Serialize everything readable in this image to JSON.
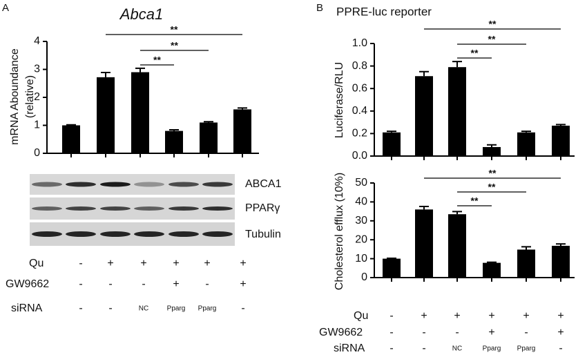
{
  "panel_labels": [
    "A",
    "B"
  ],
  "chart_data": [
    {
      "type": "bar",
      "title": "Abca1",
      "ylabel": [
        "mRNA Aboundance",
        "(relative)"
      ],
      "categories": [
        null,
        null,
        null,
        null,
        null,
        null
      ],
      "values": [
        1.0,
        2.72,
        2.9,
        0.8,
        1.1,
        1.57
      ],
      "errors": [
        0.02,
        0.17,
        0.14,
        0.04,
        0.03,
        0.05
      ],
      "color": "#000000",
      "ylim": [
        0,
        4
      ],
      "yticks": [
        0,
        1,
        2,
        3,
        4
      ],
      "annotations": [
        "**",
        "**",
        "**"
      ]
    },
    {
      "type": "bar",
      "title": "PPRE-luc reporter",
      "ylabel": [
        "Luciferase/RLU"
      ],
      "categories": [
        null,
        null,
        null,
        null,
        null,
        null
      ],
      "values": [
        0.21,
        0.71,
        0.79,
        0.08,
        0.21,
        0.27
      ],
      "errors": [
        0.01,
        0.04,
        0.05,
        0.02,
        0.01,
        0.01
      ],
      "color": "#000000",
      "ylim": [
        0,
        1.0
      ],
      "yticks": [
        {
          "value": 0,
          "label": "0.0"
        },
        0.2,
        0.4,
        0.6,
        0.8,
        {
          "value": 1,
          "label": "1.0"
        }
      ],
      "annotations": [
        "**",
        "**",
        "**"
      ]
    },
    {
      "type": "bar",
      "ylabel": [
        "Cholesterol efflux (10%)"
      ],
      "categories": [
        null,
        null,
        null,
        null,
        null,
        null
      ],
      "values": [
        10,
        36,
        33.5,
        7.8,
        14.8,
        16.8
      ],
      "errors": [
        0.2,
        1.6,
        1.4,
        0.3,
        1.5,
        1.0
      ],
      "color": "#000000",
      "ylim": [
        0,
        50
      ],
      "yticks": [
        0,
        10,
        20,
        30,
        40,
        50
      ],
      "annotations": [
        "**",
        "**",
        "**"
      ]
    }
  ],
  "blot_labels": [
    "ABCA1",
    "PPARγ",
    "Tubulin"
  ],
  "treatments": [
    {
      "name": "Qu",
      "values": [
        "-",
        "+",
        "+",
        "+",
        "+",
        "+"
      ]
    },
    {
      "name": "GW9662",
      "values": [
        "-",
        "-",
        "-",
        "+",
        "-",
        "+"
      ]
    },
    {
      "name": "siRNA",
      "values": [
        "-",
        "-",
        "NC",
        "Pparg",
        "Pparg",
        "-"
      ]
    }
  ]
}
